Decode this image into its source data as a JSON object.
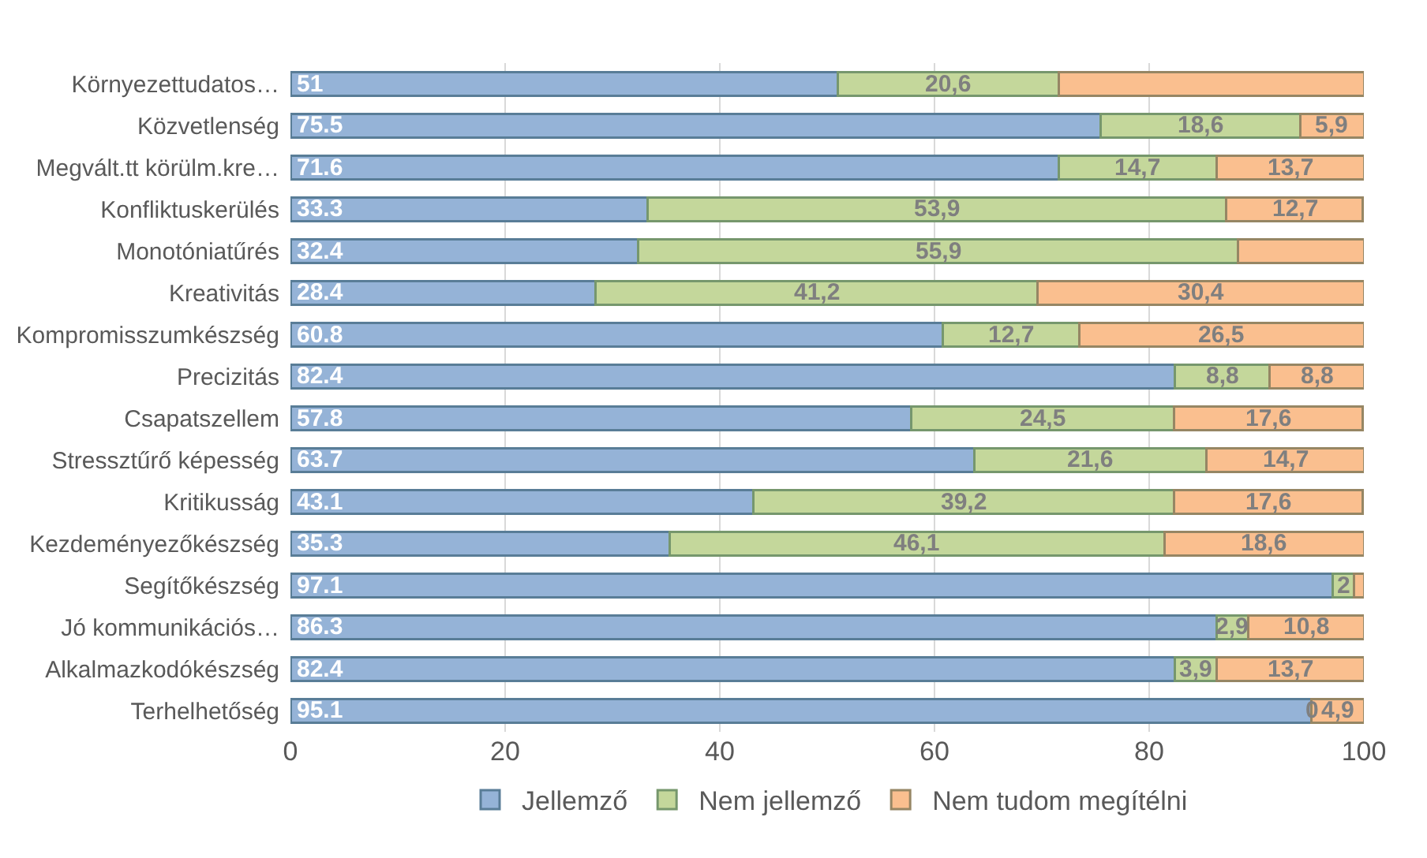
{
  "chart_data": {
    "type": "bar",
    "orientation": "horizontal",
    "stacked": true,
    "categories": [
      "Környezettudatos…",
      "Közvetlenség",
      "Megvált.tt körülm.kre…",
      "Konfliktuskerülés",
      "Monotóniatűrés",
      "Kreativitás",
      "Kompromisszumkészség",
      "Precizitás",
      "Csapatszellem",
      "Stressztűrő képesség",
      "Kritikusság",
      "Kezdeményezőkészség",
      "Segítőkészség",
      "Jó kommunikációs…",
      "Alkalmazkodókészség",
      "Terhelhetőség"
    ],
    "series": [
      {
        "name": "Jellemző",
        "color": "#95b3d7",
        "values": [
          51,
          75.5,
          71.6,
          33.3,
          32.4,
          28.4,
          60.8,
          82.4,
          57.8,
          63.7,
          43.1,
          35.3,
          97.1,
          86.3,
          82.4,
          95.1
        ],
        "value_labels": [
          "51",
          "75.5",
          "71.6",
          "33.3",
          "32.4",
          "28.4",
          "60.8",
          "82.4",
          "57.8",
          "63.7",
          "43.1",
          "35.3",
          "97.1",
          "86.3",
          "82.4",
          "95.1"
        ]
      },
      {
        "name": "Nem jellemző",
        "color": "#c4d79b",
        "values": [
          20.6,
          18.6,
          14.7,
          53.9,
          55.9,
          41.2,
          12.7,
          8.8,
          24.5,
          21.6,
          39.2,
          46.1,
          2,
          2.9,
          3.9,
          0
        ],
        "value_labels": [
          "20,6",
          "18,6",
          "14,7",
          "53,9",
          "55,9",
          "41,2",
          "12,7",
          "8,8",
          "24,5",
          "21,6",
          "39,2",
          "46,1",
          "2",
          "2,9",
          "3,9",
          "0"
        ]
      },
      {
        "name": "Nem tudom megítélni",
        "color": "#fabf8f",
        "values": [
          28.4,
          5.9,
          13.7,
          12.7,
          11.7,
          30.4,
          26.5,
          8.8,
          17.6,
          14.7,
          17.6,
          18.6,
          0.9,
          10.8,
          13.7,
          4.9
        ],
        "value_labels": [
          null,
          "5,9",
          "13,7",
          "12,7",
          null,
          "30,4",
          "26,5",
          "8,8",
          "17,6",
          "14,7",
          "17,6",
          "18,6",
          null,
          "10,8",
          "13,7",
          "4,9"
        ]
      }
    ],
    "xlim": [
      0,
      100
    ],
    "xticks": [
      0,
      20,
      40,
      60,
      80,
      100
    ],
    "grid": "x",
    "legend": "bottom"
  }
}
